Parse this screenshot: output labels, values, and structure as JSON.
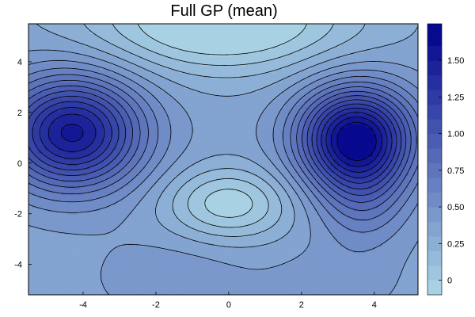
{
  "chart_data": {
    "type": "contour",
    "title": "Full GP (mean)",
    "xlabel": "",
    "ylabel": "",
    "xlim": [
      -5.5,
      5.2
    ],
    "ylim": [
      -5.2,
      5.5
    ],
    "x_ticks": [
      "-4",
      "-2",
      "0",
      "2",
      "4"
    ],
    "y_ticks": [
      "-4",
      "-2",
      "0",
      "2",
      "4"
    ],
    "colorbar": {
      "range": [
        -0.1,
        1.75
      ],
      "tick_values": [
        0,
        0.25,
        0.5,
        0.75,
        1.0,
        1.25,
        1.5
      ],
      "tick_labels": [
        "0",
        "0.25",
        "0.50",
        "0.75",
        "1.00",
        "1.25",
        "1.50"
      ],
      "levels": [
        -0.1,
        0.0,
        0.1,
        0.2,
        0.3,
        0.4,
        0.5,
        0.6,
        0.7,
        0.8,
        0.9,
        1.0,
        1.1,
        1.2,
        1.3,
        1.4,
        1.5,
        1.6,
        1.75
      ],
      "color_low": "#add8e6",
      "color_high": "#00008b"
    },
    "peaks": [
      {
        "x": -4.3,
        "y": 1.2,
        "value": 1.62
      },
      {
        "x": 3.5,
        "y": 1.0,
        "value": 1.72
      }
    ],
    "minimum": {
      "x": 0.0,
      "y": -1.6,
      "value": -0.05
    },
    "grid": false,
    "contour_lines": true,
    "line_color": "#000000"
  }
}
